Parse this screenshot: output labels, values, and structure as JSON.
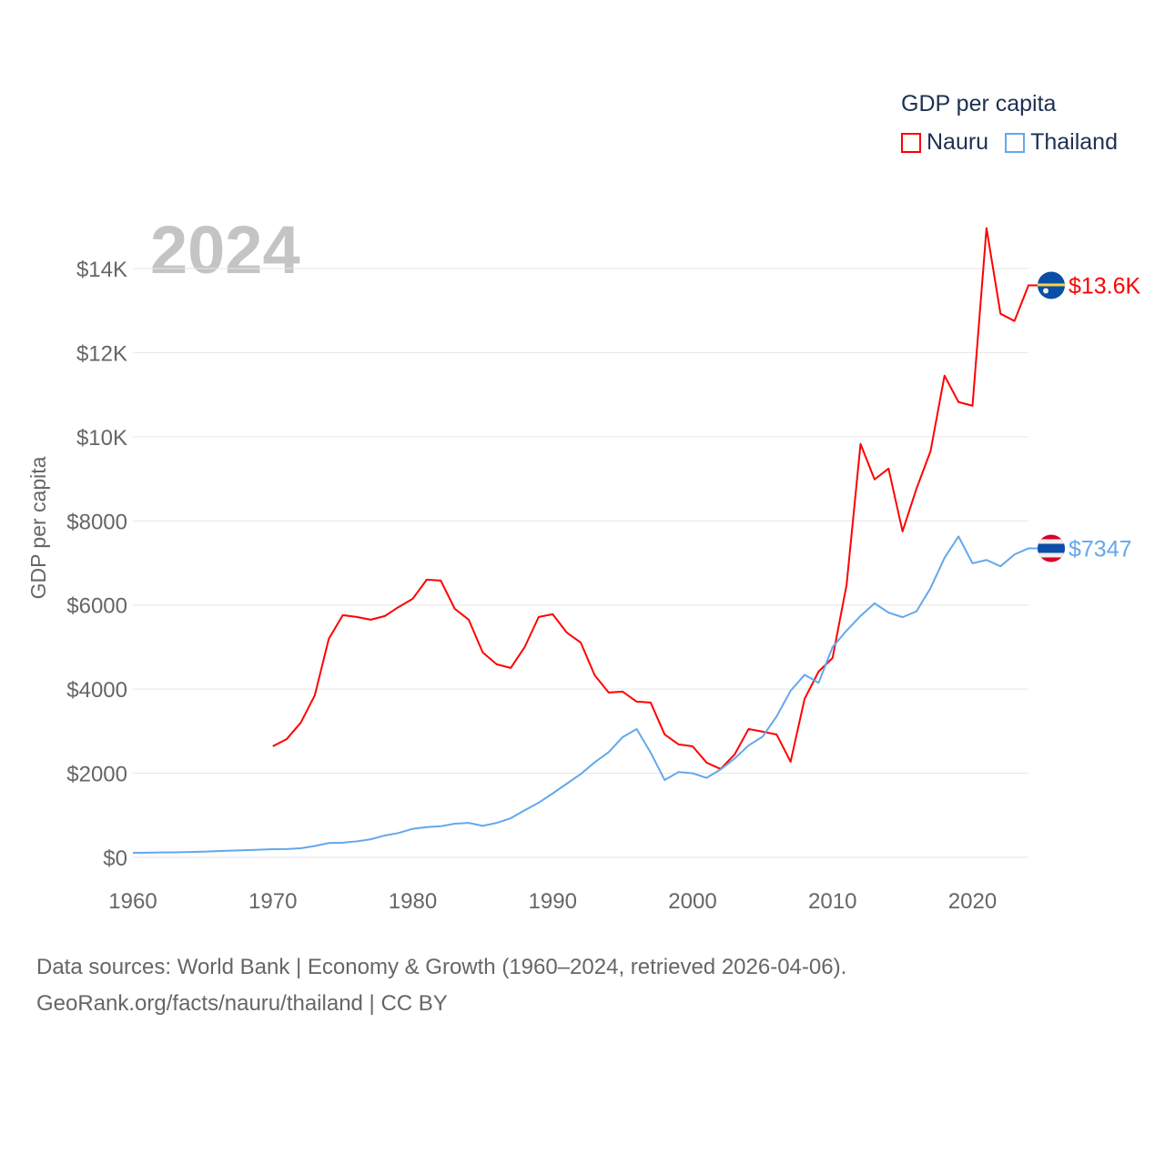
{
  "chart_data": {
    "type": "line",
    "title": "GDP per capita",
    "year_label": "2024",
    "ylabel": "GDP per capita",
    "xlabel": "",
    "xlim": [
      1960,
      2024
    ],
    "ylim": [
      0,
      14000
    ],
    "x_ticks": [
      1960,
      1970,
      1980,
      1990,
      2000,
      2010,
      2020
    ],
    "x_tick_labels": [
      "1960",
      "1970",
      "1980",
      "1990",
      "2000",
      "2010",
      "2020"
    ],
    "y_ticks": [
      0,
      2000,
      4000,
      6000,
      8000,
      10000,
      12000,
      14000
    ],
    "y_tick_labels": [
      "$0",
      "$2000",
      "$4000",
      "$6000",
      "$8000",
      "$10K",
      "$12K",
      "$14K"
    ],
    "grid": true,
    "legend_position": "top-right",
    "series": [
      {
        "name": "Nauru",
        "color": "#ff0000",
        "end_label": "$13.6K",
        "flag": "nauru-flag",
        "start_year": 1970,
        "values": [
          2641,
          2814,
          3204,
          3853,
          5196,
          5759,
          5715,
          5650,
          5737,
          5954,
          6149,
          6603,
          6581,
          5910,
          5650,
          4871,
          4590,
          4503,
          5001,
          5715,
          5780,
          5347,
          5109,
          4330,
          3919,
          3940,
          3702,
          3680,
          2922,
          2685,
          2641,
          2252,
          2100,
          2446,
          3052,
          2988,
          2922,
          2273,
          3767,
          4417,
          4741,
          6473,
          9829,
          8985,
          9244,
          7750,
          8768,
          9656,
          11453,
          10825,
          10738,
          14960,
          12925,
          12752,
          13600
        ]
      },
      {
        "name": "Thailand",
        "color": "#62a8ec",
        "end_label": "$7347",
        "flag": "thailand-flag",
        "start_year": 1960,
        "values": [
          108,
          112,
          116,
          120,
          126,
          134,
          148,
          160,
          170,
          182,
          195,
          198,
          217,
          270,
          340,
          350,
          380,
          430,
          520,
          580,
          680,
          720,
          740,
          800,
          820,
          750,
          820,
          930,
          1120,
          1300,
          1520,
          1750,
          1980,
          2260,
          2500,
          2860,
          3050,
          2490,
          1840,
          2030,
          2000,
          1890,
          2090,
          2350,
          2660,
          2870,
          3350,
          3960,
          4340,
          4150,
          5000,
          5390,
          5740,
          6040,
          5820,
          5710,
          5850,
          6400,
          7120,
          7630,
          6990,
          7070,
          6920,
          7200,
          7347
        ]
      }
    ]
  },
  "footer": {
    "line1": "Data sources: World Bank | Economy & Growth (1960–2024, retrieved 2026-04-06).",
    "line2": "GeoRank.org/facts/nauru/thailand | CC BY"
  }
}
